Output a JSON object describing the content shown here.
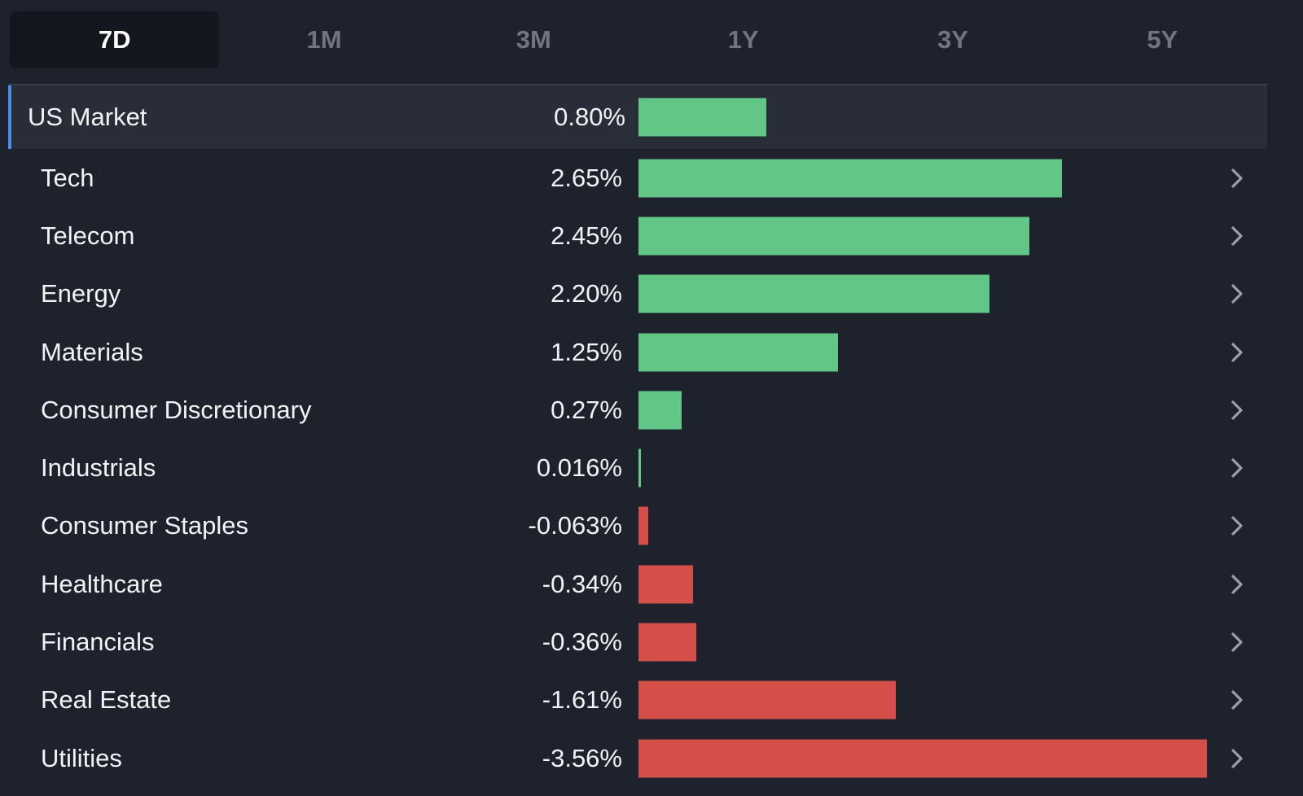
{
  "tabs": [
    {
      "label": "7D",
      "active": true
    },
    {
      "label": "1M",
      "active": false
    },
    {
      "label": "3M",
      "active": false
    },
    {
      "label": "1Y",
      "active": false
    },
    {
      "label": "3Y",
      "active": false
    },
    {
      "label": "5Y",
      "active": false
    }
  ],
  "colors": {
    "positive": "#62c687",
    "negative": "#d44f49",
    "highlight_accent": "#4a90e2"
  },
  "chart_data": {
    "type": "bar",
    "max_abs_value": 3.56,
    "rows": [
      {
        "name": "US Market",
        "value": 0.8,
        "label": "0.80%",
        "highlight": true
      },
      {
        "name": "Tech",
        "value": 2.65,
        "label": "2.65%"
      },
      {
        "name": "Telecom",
        "value": 2.45,
        "label": "2.45%"
      },
      {
        "name": "Energy",
        "value": 2.2,
        "label": "2.20%"
      },
      {
        "name": "Materials",
        "value": 1.25,
        "label": "1.25%"
      },
      {
        "name": "Consumer Discretionary",
        "value": 0.27,
        "label": "0.27%"
      },
      {
        "name": "Industrials",
        "value": 0.016,
        "label": "0.016%"
      },
      {
        "name": "Consumer Staples",
        "value": -0.063,
        "label": "-0.063%"
      },
      {
        "name": "Healthcare",
        "value": -0.34,
        "label": "-0.34%"
      },
      {
        "name": "Financials",
        "value": -0.36,
        "label": "-0.36%"
      },
      {
        "name": "Real Estate",
        "value": -1.61,
        "label": "-1.61%"
      },
      {
        "name": "Utilities",
        "value": -3.56,
        "label": "-3.56%"
      }
    ]
  },
  "icons": {
    "row_chevron": "chevron-right-icon"
  }
}
